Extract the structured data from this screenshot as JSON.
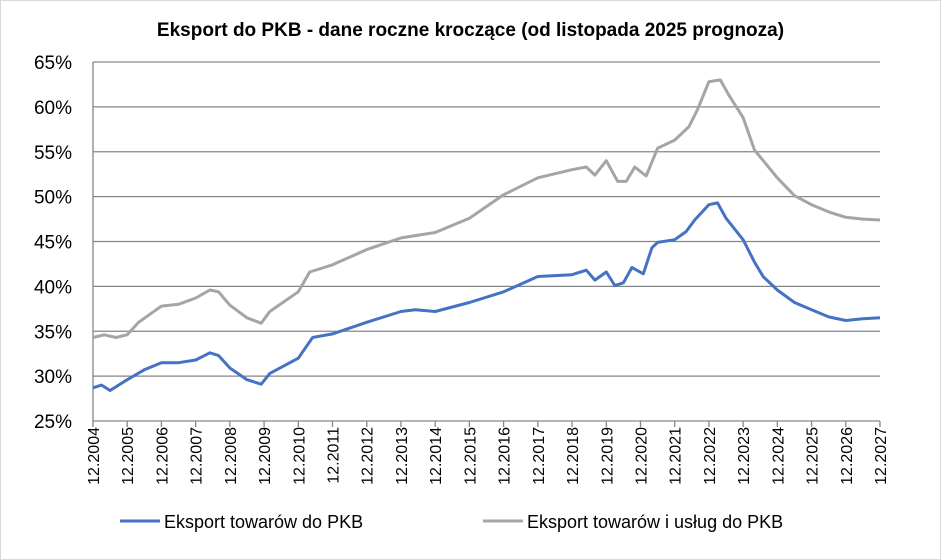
{
  "chart_data": {
    "type": "line",
    "title": "Eksport do PKB - dane roczne kroczące (od listopada 2025 prognoza)",
    "xlabel": "",
    "ylabel": "",
    "ylim": [
      25,
      65
    ],
    "yticks": [
      "25%",
      "30%",
      "35%",
      "40%",
      "45%",
      "50%",
      "55%",
      "60%",
      "65%"
    ],
    "xticks": [
      "12.2004",
      "12.2005",
      "12.2006",
      "12.2007",
      "12.2008",
      "12.2009",
      "12.2010",
      "12.2011",
      "12.2012",
      "12.2013",
      "12.2014",
      "12.2015",
      "12.2016",
      "12.2017",
      "12.2018",
      "12.2019",
      "12.2020",
      "12.2021",
      "12.2022",
      "12.2023",
      "12.2024",
      "12.2025",
      "12.2026",
      "12.2027"
    ],
    "grid": "horizontal",
    "legend": "bottom",
    "series": [
      {
        "name": "Eksport towarów do PKB",
        "color": "#4472c4",
        "points": [
          [
            "12.2004",
            28.7
          ],
          [
            "03.2005",
            29.0
          ],
          [
            "06.2005",
            28.4
          ],
          [
            "12.2005",
            29.6
          ],
          [
            "06.2006",
            30.7
          ],
          [
            "12.2006",
            31.5
          ],
          [
            "06.2007",
            31.5
          ],
          [
            "12.2007",
            31.8
          ],
          [
            "05.2008",
            32.6
          ],
          [
            "08.2008",
            32.3
          ],
          [
            "12.2008",
            30.9
          ],
          [
            "06.2009",
            29.6
          ],
          [
            "11.2009",
            29.1
          ],
          [
            "02.2010",
            30.3
          ],
          [
            "12.2010",
            32.0
          ],
          [
            "05.2011",
            34.3
          ],
          [
            "12.2011",
            34.7
          ],
          [
            "12.2012",
            36.0
          ],
          [
            "12.2013",
            37.2
          ],
          [
            "05.2014",
            37.4
          ],
          [
            "12.2014",
            37.2
          ],
          [
            "12.2015",
            38.2
          ],
          [
            "12.2016",
            39.4
          ],
          [
            "12.2017",
            41.1
          ],
          [
            "12.2018",
            41.3
          ],
          [
            "05.2019",
            41.8
          ],
          [
            "08.2019",
            40.7
          ],
          [
            "12.2019",
            41.6
          ],
          [
            "03.2020",
            40.1
          ],
          [
            "06.2020",
            40.4
          ],
          [
            "09.2020",
            42.1
          ],
          [
            "01.2021",
            41.4
          ],
          [
            "04.2021",
            44.3
          ],
          [
            "06.2021",
            44.9
          ],
          [
            "12.2021",
            45.2
          ],
          [
            "04.2022",
            46.1
          ],
          [
            "07.2022",
            47.4
          ],
          [
            "12.2022",
            49.1
          ],
          [
            "03.2023",
            49.3
          ],
          [
            "06.2023",
            47.6
          ],
          [
            "12.2023",
            45.2
          ],
          [
            "04.2024",
            42.7
          ],
          [
            "07.2024",
            41.1
          ],
          [
            "12.2024",
            39.6
          ],
          [
            "06.2025",
            38.2
          ],
          [
            "12.2025",
            37.4
          ],
          [
            "06.2026",
            36.6
          ],
          [
            "12.2026",
            36.2
          ],
          [
            "06.2027",
            36.4
          ],
          [
            "12.2027",
            36.5
          ]
        ]
      },
      {
        "name": "Eksport towarów i usług do PKB",
        "color": "#a5a5a5",
        "points": [
          [
            "12.2004",
            34.3
          ],
          [
            "04.2005",
            34.6
          ],
          [
            "08.2005",
            34.3
          ],
          [
            "12.2005",
            34.6
          ],
          [
            "04.2006",
            36.0
          ],
          [
            "12.2006",
            37.8
          ],
          [
            "06.2007",
            38.0
          ],
          [
            "12.2007",
            38.7
          ],
          [
            "05.2008",
            39.6
          ],
          [
            "08.2008",
            39.4
          ],
          [
            "12.2008",
            37.9
          ],
          [
            "06.2009",
            36.5
          ],
          [
            "11.2009",
            35.9
          ],
          [
            "02.2010",
            37.2
          ],
          [
            "12.2010",
            39.4
          ],
          [
            "04.2011",
            41.6
          ],
          [
            "12.2011",
            42.4
          ],
          [
            "12.2012",
            44.1
          ],
          [
            "12.2013",
            45.4
          ],
          [
            "12.2014",
            46.0
          ],
          [
            "12.2015",
            47.6
          ],
          [
            "12.2016",
            50.2
          ],
          [
            "12.2017",
            52.1
          ],
          [
            "12.2018",
            53.0
          ],
          [
            "05.2019",
            53.3
          ],
          [
            "08.2019",
            52.4
          ],
          [
            "12.2019",
            54.0
          ],
          [
            "04.2020",
            51.7
          ],
          [
            "07.2020",
            51.7
          ],
          [
            "10.2020",
            53.3
          ],
          [
            "02.2021",
            52.3
          ],
          [
            "06.2021",
            55.4
          ],
          [
            "12.2021",
            56.3
          ],
          [
            "05.2022",
            57.8
          ],
          [
            "08.2022",
            59.7
          ],
          [
            "12.2022",
            62.8
          ],
          [
            "04.2023",
            63.0
          ],
          [
            "07.2023",
            61.3
          ],
          [
            "12.2023",
            58.8
          ],
          [
            "04.2024",
            55.2
          ],
          [
            "12.2024",
            52.1
          ],
          [
            "06.2025",
            50.1
          ],
          [
            "12.2025",
            49.1
          ],
          [
            "06.2026",
            48.3
          ],
          [
            "12.2026",
            47.7
          ],
          [
            "06.2027",
            47.5
          ],
          [
            "12.2027",
            47.4
          ]
        ]
      }
    ]
  }
}
